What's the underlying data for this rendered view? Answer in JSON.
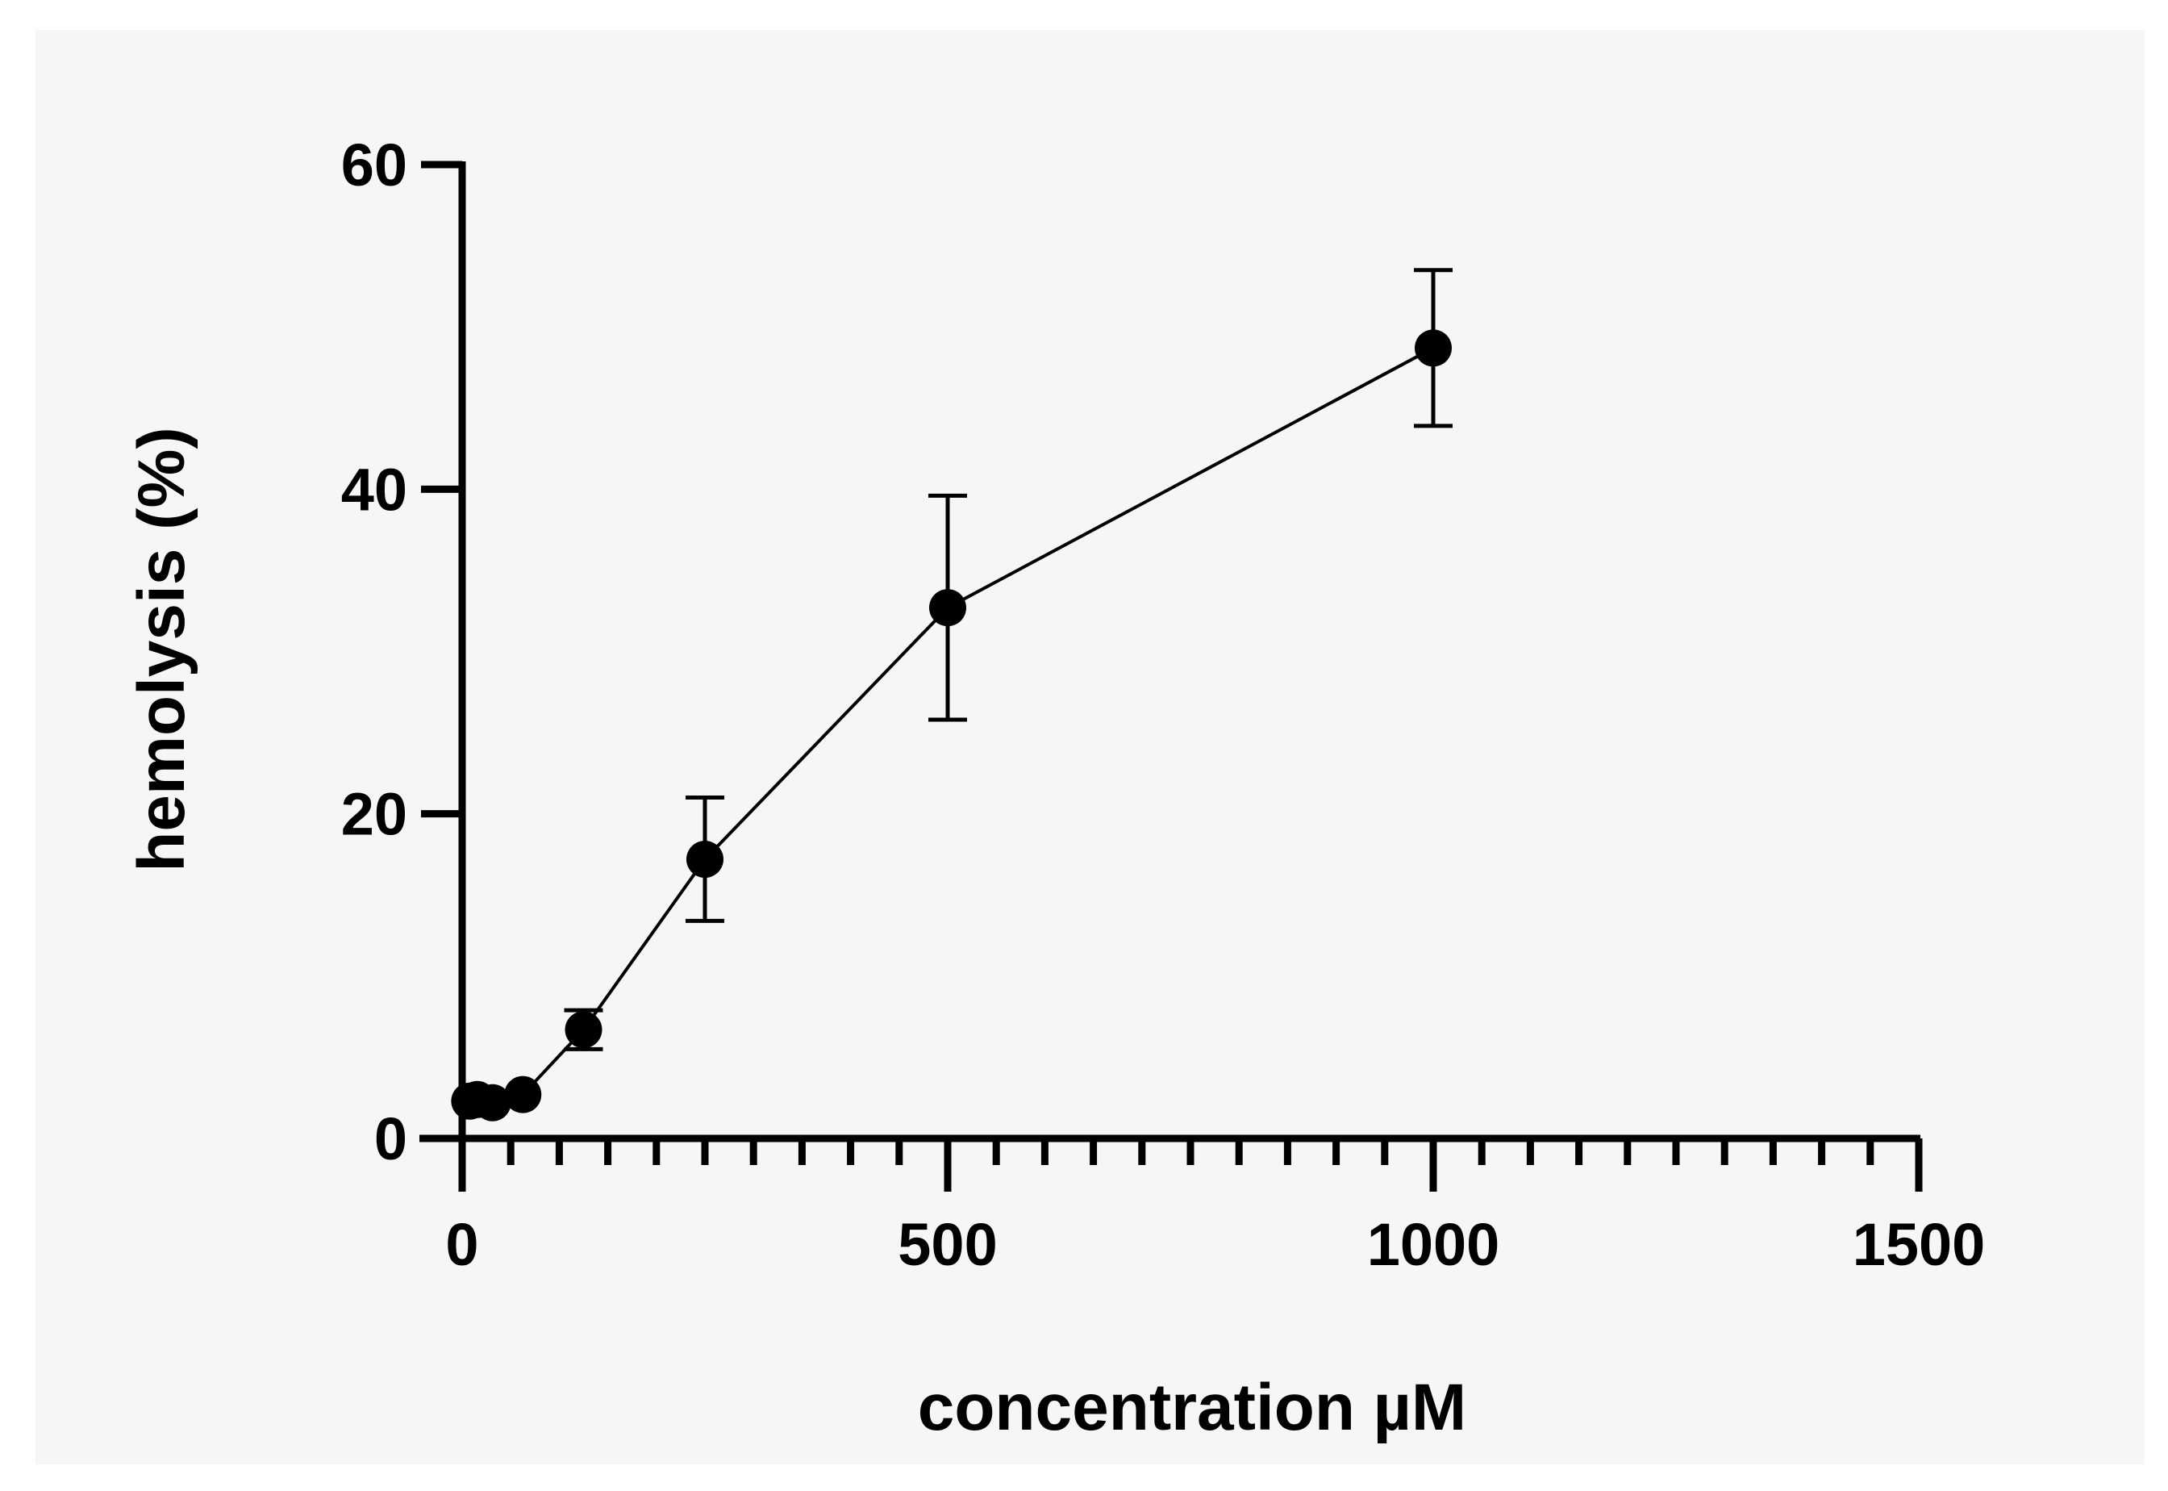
{
  "chart_data": {
    "type": "line",
    "title": "",
    "xlabel": "concentration µM",
    "ylabel": "hemolysis (%)",
    "xlim": [
      0,
      1500
    ],
    "ylim": [
      0,
      60
    ],
    "x_ticks": [
      0,
      500,
      1000,
      1500
    ],
    "x_tick_labels": [
      "0",
      "500",
      "1000",
      "1500"
    ],
    "x_minor_tick_step": 50,
    "y_ticks": [
      0,
      20,
      40,
      60
    ],
    "y_tick_labels": [
      "0",
      "20",
      "40",
      "60"
    ],
    "grid": false,
    "legend": null,
    "series": [
      {
        "name": "hemolysis",
        "marker": "filled-circle",
        "color": "#000000",
        "x": [
          7.8,
          15.6,
          31.25,
          62.5,
          125,
          250,
          500,
          1000
        ],
        "y": [
          2.3,
          2.4,
          2.2,
          2.7,
          6.7,
          17.2,
          32.7,
          48.7
        ],
        "error": [
          0.3,
          0.3,
          0.3,
          0.4,
          1.2,
          3.8,
          6.9,
          4.8
        ]
      }
    ]
  },
  "style": {
    "background": "#f6f6f6",
    "page_background": "#ffffff",
    "ink": "#000000"
  }
}
